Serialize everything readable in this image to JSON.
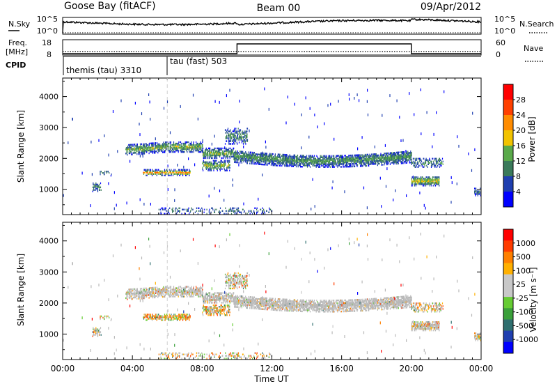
{
  "header": {
    "station": "Goose Bay (fitACF)",
    "beam": "Beam 00",
    "date": "09/Apr/2012"
  },
  "noise_panel": {
    "left_label": "N.Sky",
    "left_ticks": [
      "10^5",
      "10^0"
    ],
    "right_ticks": [
      "10^5",
      "10^0"
    ],
    "right_label": "N.Search"
  },
  "freq_panel": {
    "left_label_1": "Freq.",
    "left_label_2": "[MHz]",
    "left_ticks": [
      "18",
      "8"
    ],
    "right_ticks": [
      "60",
      "0"
    ],
    "right_label": "Nave"
  },
  "cpid": {
    "label": "CPID",
    "modes": [
      {
        "name": "themis (tau) 3310",
        "start_hour": 0
      },
      {
        "name": "tau (fast) 503",
        "start_hour": 6
      }
    ]
  },
  "colors": {
    "power_scale": [
      "#0000ff",
      "#1f3fb0",
      "#3a7a5a",
      "#5aaa4a",
      "#f2c300",
      "#ff8c00",
      "#ff4000",
      "#ff0000"
    ],
    "velocity_scale": [
      "#ff0000",
      "#ff3c00",
      "#ff8000",
      "#ffb000",
      "#c8c8c8",
      "#c8c8c8",
      "#66cc33",
      "#3aa03a",
      "#2f6f6f",
      "#1f3fb0",
      "#0000ff"
    ],
    "ground_scatter": "#b8b8b8"
  },
  "chart_data": [
    {
      "type": "heatmap",
      "name": "power",
      "ylabel": "Slant Range [km]",
      "yticks": [
        "1000",
        "2000",
        "3000",
        "4000"
      ],
      "ylim": [
        180,
        4600
      ],
      "xlim": [
        0,
        24
      ],
      "colorbar_label": "Power [dB]",
      "colorbar_ticks": [
        "4",
        "8",
        "12",
        "16",
        "20",
        "24",
        "28"
      ],
      "colorbar_range": [
        0,
        32
      ]
    },
    {
      "type": "heatmap",
      "name": "velocity",
      "ylabel": "Slant Range [km]",
      "yticks": [
        "1000",
        "2000",
        "3000",
        "4000"
      ],
      "ylim": [
        180,
        4600
      ],
      "xlim": [
        0,
        24
      ],
      "xticks": [
        "00:00",
        "04:00",
        "08:00",
        "12:00",
        "16:00",
        "20:00",
        "00:00"
      ],
      "xlabel": "Time UT",
      "colorbar_label": "Velocity [m s⁻¹]",
      "colorbar_ticks": [
        "1000",
        "500",
        "100",
        "25",
        "-25",
        "-100",
        "-500",
        "-1000"
      ]
    },
    {
      "type": "line",
      "name": "frequency_nave",
      "series": [
        {
          "values": [
            [
              0,
              9
            ],
            [
              10,
              9
            ],
            [
              10,
              16
            ],
            [
              20,
              16
            ],
            [
              20,
              9
            ],
            [
              24,
              9
            ]
          ]
        }
      ]
    }
  ]
}
